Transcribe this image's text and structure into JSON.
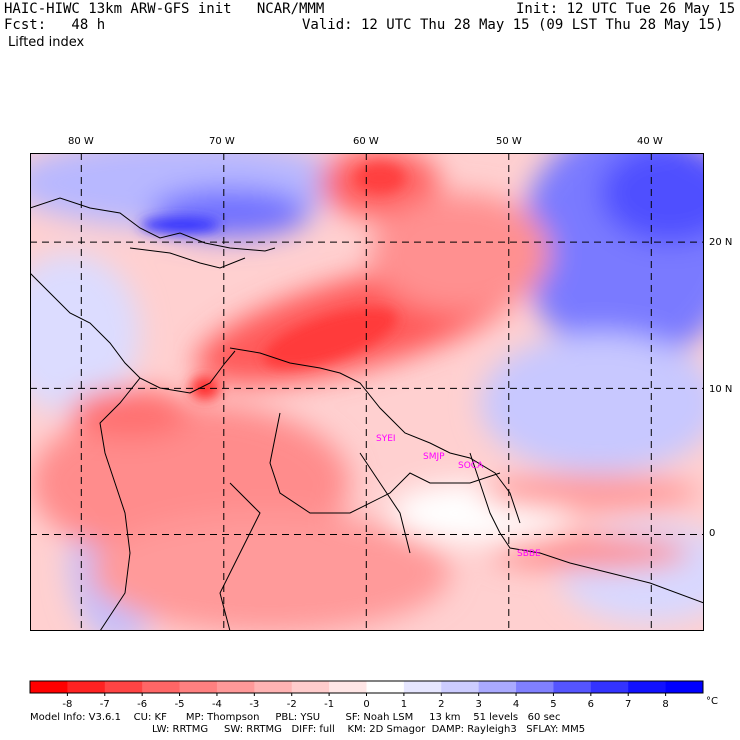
{
  "header": {
    "title": "HAIC-HIWC 13km ARW-GFS init   NCAR/MMM",
    "init": "Init: 12 UTC Tue 26 May 15",
    "fcst": "Fcst:   48 h",
    "valid": "Valid: 12 UTC Thu 28 May 15 (09 LST Thu 28 May 15)",
    "field": "Lifted index"
  },
  "map": {
    "lon_labels": [
      "80 W",
      "70 W",
      "60 W",
      "50 W",
      "40 W"
    ],
    "lat_labels": [
      "20 N",
      "10 N",
      "0"
    ],
    "lon_values": [
      -80,
      -70,
      -60,
      -50,
      -40
    ],
    "lat_values": [
      20,
      10,
      0
    ],
    "extent": {
      "lon_min": -83.6,
      "lon_max": -36.3,
      "lat_min": -6.6,
      "lat_max": 26.1
    },
    "stations": [
      "SYEI",
      "SMJP",
      "SOCA",
      "SBBE"
    ],
    "colors": {
      "negative_max": "#ff0000",
      "neutral": "#ffffff",
      "positive_max": "#0000ff",
      "contour": "#000000",
      "station": "#ff00ff",
      "grid": "#000000"
    }
  },
  "colorbar": {
    "labels": [
      "-8",
      "-7",
      "-6",
      "-5",
      "-4",
      "-3",
      "-2",
      "-1",
      "0",
      "1",
      "2",
      "3",
      "4",
      "5",
      "6",
      "7",
      "8"
    ],
    "unit": "°C",
    "colors": [
      "#ff0000",
      "#ff2222",
      "#ff4444",
      "#ff6666",
      "#ff8080",
      "#ff9999",
      "#ffb3b3",
      "#ffcccc",
      "#ffe6e6",
      "#ffffff",
      "#e6e6ff",
      "#ccccff",
      "#aaaaff",
      "#8080ff",
      "#5555ff",
      "#3333ff",
      "#1111ff",
      "#0000ff"
    ]
  },
  "footer": {
    "line1": "Model Info: V3.6.1    CU: KF      MP: Thompson     PBL: YSU        SF: Noah LSM     13 km    51 levels   60 sec",
    "line2": "LW: RRTMG     SW: RRTMG   DIFF: full    KM: 2D Smagor  DAMP: Rayleigh3   SFLAY: MM5"
  }
}
